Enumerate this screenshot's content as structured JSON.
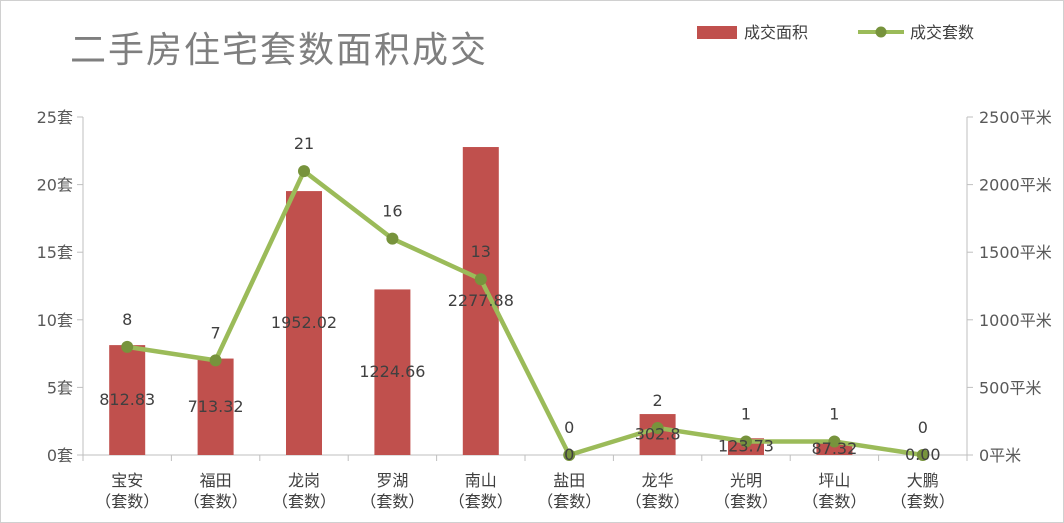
{
  "chart_data": {
    "type": "bar",
    "title": "二手房住宅套数面积成交",
    "categories": [
      "宝安",
      "福田",
      "龙岗",
      "罗湖",
      "南山",
      "盐田",
      "龙华",
      "光明",
      "坪山",
      "大鹏"
    ],
    "category_suffix": "（套数）",
    "series": [
      {
        "name": "成交面积",
        "type": "bar",
        "axis": "right",
        "color": "#c0504d",
        "values": [
          812.83,
          713.32,
          1952.02,
          1224.66,
          2277.88,
          0,
          302.8,
          123.73,
          87.32,
          0
        ],
        "labels": [
          "812.83",
          "713.32",
          "1952.02",
          "1224.66",
          "2277.88",
          "0",
          "302.8",
          "123.73",
          "87.32",
          "0.00"
        ]
      },
      {
        "name": "成交套数",
        "type": "line",
        "axis": "left",
        "color": "#9bbb59",
        "marker_color": "#77933c",
        "values": [
          8,
          7,
          21,
          16,
          13,
          0,
          2,
          1,
          1,
          0
        ],
        "labels": [
          "8",
          "7",
          "21",
          "16",
          "13",
          "0",
          "2",
          "1",
          "1",
          "0"
        ]
      }
    ],
    "y_left": {
      "ticks": [
        0,
        5,
        10,
        15,
        20,
        25
      ],
      "tick_labels": [
        "0套",
        "5套",
        "10套",
        "15套",
        "20套",
        "25套"
      ],
      "ylim": [
        0,
        25
      ]
    },
    "y_right": {
      "ticks": [
        0,
        500,
        1000,
        1500,
        2000,
        2500
      ],
      "tick_labels": [
        "0平米",
        "500平米",
        "1000平米",
        "1500平米",
        "2000平米",
        "2500平米"
      ],
      "ylim": [
        0,
        2500
      ]
    },
    "grid": false,
    "legend_position": "top-right"
  }
}
